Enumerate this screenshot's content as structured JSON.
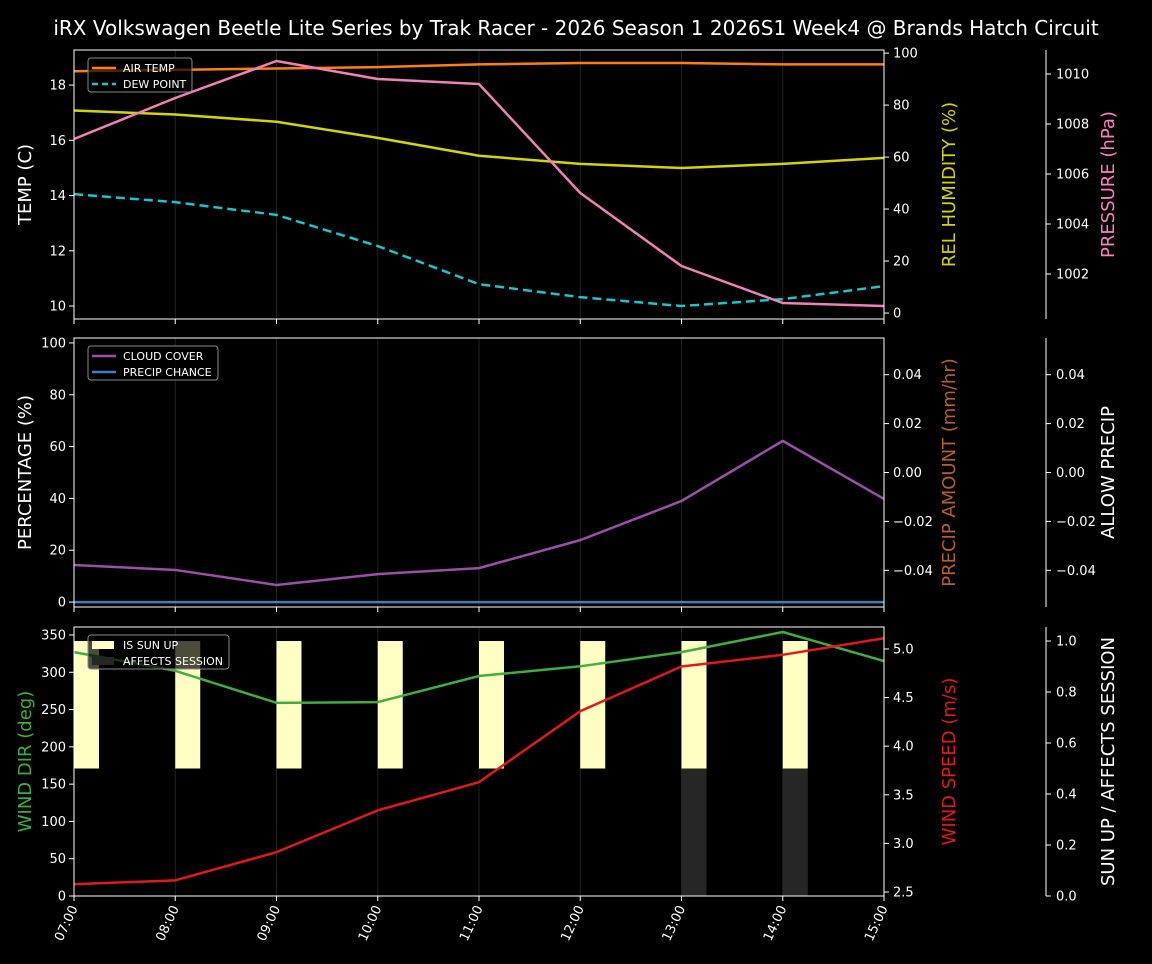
{
  "title": "iRX Volkswagen Beetle Lite Series by Trak Racer - 2026 Season 1 2026S1 Week4 @ Brands Hatch Circuit",
  "chart_data": [
    {
      "type": "line",
      "x": [
        "07:00",
        "08:00",
        "09:00",
        "10:00",
        "11:00",
        "12:00",
        "13:00",
        "14:00",
        "15:00"
      ],
      "grid": true,
      "axes": [
        {
          "side": "left",
          "label": "TEMP (C)",
          "label_color": "#ffffff",
          "ylim": [
            9.53,
            19.27
          ],
          "ticks": [
            10,
            12,
            14,
            16,
            18
          ],
          "tick_labels": [
            "10",
            "12",
            "14",
            "16",
            "18"
          ]
        },
        {
          "side": "right",
          "label": "REL HUMIDITY (%)",
          "label_color": "#d4d400",
          "ylim": [
            -2.3,
            101.2
          ],
          "ticks": [
            0,
            20,
            40,
            60,
            80,
            100
          ],
          "tick_labels": [
            "0",
            "20",
            "40",
            "60",
            "80",
            "100"
          ]
        },
        {
          "side": "right2",
          "label": "PRESSURE (hPa)",
          "label_color": "#ff7fbf",
          "ylim": [
            1000.2,
            1010.96
          ],
          "ticks": [
            1002,
            1004,
            1006,
            1008,
            1010
          ],
          "tick_labels": [
            "1002",
            "1004",
            "1006",
            "1008",
            "1010"
          ]
        }
      ],
      "series": [
        {
          "name": "AIR TEMP",
          "axis": 0,
          "color": "#ff7f0e",
          "dash": false,
          "values": [
            18.5,
            18.55,
            18.6,
            18.65,
            18.75,
            18.8,
            18.8,
            18.75,
            18.75
          ]
        },
        {
          "name": "DEW POINT",
          "axis": 0,
          "color": "#17c5cf",
          "dash": true,
          "values": [
            14.05,
            13.76,
            13.3,
            12.17,
            10.79,
            10.32,
            10.0,
            10.25,
            10.72
          ]
        },
        {
          "axis": 1,
          "color": "#d4d400",
          "dash": false,
          "values": [
            77.9,
            76.4,
            73.6,
            67.4,
            60.5,
            57.4,
            55.8,
            57.4,
            59.7
          ]
        },
        {
          "axis": 2,
          "color": "#f080b8",
          "dash": false,
          "values": [
            1007.4,
            1009.04,
            1010.52,
            1009.8,
            1009.6,
            1005.24,
            1002.32,
            1000.84,
            1000.72
          ]
        }
      ],
      "legend": {
        "placement": "top-left",
        "entries": [
          "AIR TEMP",
          "DEW POINT"
        ]
      }
    },
    {
      "type": "line",
      "x": [
        "07:00",
        "08:00",
        "09:00",
        "10:00",
        "11:00",
        "12:00",
        "13:00",
        "14:00",
        "15:00"
      ],
      "grid": true,
      "axes": [
        {
          "side": "left",
          "label": "PERCENTAGE (%)",
          "label_color": "#ffffff",
          "ylim": [
            -1.9,
            101.9
          ],
          "ticks": [
            0,
            20,
            40,
            60,
            80,
            100
          ],
          "tick_labels": [
            "0",
            "20",
            "40",
            "60",
            "80",
            "100"
          ]
        },
        {
          "side": "right",
          "label": "PRECIP AMOUNT (mm/hr)",
          "label_color": "#b5602a",
          "ylim": [
            -0.055,
            0.055
          ],
          "ticks": [
            -0.04,
            -0.02,
            0,
            0.02,
            0.04
          ],
          "tick_labels": [
            "−0.04",
            "−0.02",
            "0.00",
            "0.02",
            "0.04"
          ]
        },
        {
          "side": "right2",
          "label": "ALLOW PRECIP",
          "label_color": "#ffffff",
          "ylim": [
            -0.055,
            0.055
          ],
          "ticks": [
            -0.04,
            -0.02,
            0,
            0.02,
            0.04
          ],
          "tick_labels": [
            "−0.04",
            "−0.02",
            "0.00",
            "0.02",
            "0.04"
          ]
        }
      ],
      "series": [
        {
          "name": "CLOUD COVER",
          "axis": 0,
          "color": "#9b4fa8",
          "dash": false,
          "values": [
            14.3,
            12.4,
            6.6,
            10.8,
            13.1,
            23.9,
            39.0,
            62.2,
            39.8
          ]
        },
        {
          "name": "PRECIP CHANCE",
          "axis": 0,
          "color": "#3a7fc0",
          "dash": false,
          "values": [
            0,
            0,
            0,
            0,
            0,
            0,
            0,
            0,
            0
          ]
        }
      ],
      "legend": {
        "placement": "top-left",
        "entries": [
          "CLOUD COVER",
          "PRECIP CHANCE"
        ]
      }
    },
    {
      "type": "line",
      "x": [
        "07:00",
        "08:00",
        "09:00",
        "10:00",
        "11:00",
        "12:00",
        "13:00",
        "14:00",
        "15:00"
      ],
      "grid": true,
      "axes": [
        {
          "side": "left",
          "label": "WIND DIR (deg)",
          "label_color": "#3fae3f",
          "ylim": [
            0,
            360.7
          ],
          "ticks": [
            0,
            50,
            100,
            150,
            200,
            250,
            300,
            350
          ],
          "tick_labels": [
            "0",
            "50",
            "100",
            "150",
            "200",
            "250",
            "300",
            "350"
          ]
        },
        {
          "side": "right",
          "label": "WIND SPEED (m/s)",
          "label_color": "#e01a1a",
          "ylim": [
            2.459,
            5.226
          ],
          "ticks": [
            2.5,
            3.0,
            3.5,
            4.0,
            4.5,
            5.0
          ],
          "tick_labels": [
            "2.5",
            "3.0",
            "3.5",
            "4.0",
            "4.5",
            "5.0"
          ]
        },
        {
          "side": "right2",
          "label": "SUN UP / AFFECTS SESSION",
          "label_color": "#ffffff",
          "ylim": [
            0,
            1.055
          ],
          "ticks": [
            0,
            0.2,
            0.4,
            0.6,
            0.8,
            1.0
          ],
          "tick_labels": [
            "0.0",
            "0.2",
            "0.4",
            "0.6",
            "0.8",
            "1.0"
          ]
        }
      ],
      "bars": [
        {
          "name": "IS SUN UP",
          "axis": 2,
          "color": "#ffffc4",
          "values": [
            1,
            1,
            1,
            1,
            1,
            1,
            1,
            1,
            0
          ]
        },
        {
          "name": "AFFECTS SESSION",
          "axis": 2,
          "color": "#262626",
          "values": [
            0,
            0,
            0,
            0,
            0,
            0,
            1,
            1,
            0
          ]
        }
      ],
      "series": [
        {
          "axis": 0,
          "color": "#3fae3f",
          "dash": false,
          "values": [
            327,
            302,
            259,
            260,
            295,
            308,
            327,
            354,
            315
          ]
        },
        {
          "axis": 1,
          "color": "#e01a1a",
          "dash": false,
          "values": [
            2.58,
            2.62,
            2.91,
            3.34,
            3.63,
            4.36,
            4.82,
            4.94,
            5.11
          ]
        }
      ],
      "legend": {
        "placement": "top-left",
        "entries": [
          "IS SUN UP",
          "AFFECTS SESSION"
        ]
      }
    }
  ]
}
